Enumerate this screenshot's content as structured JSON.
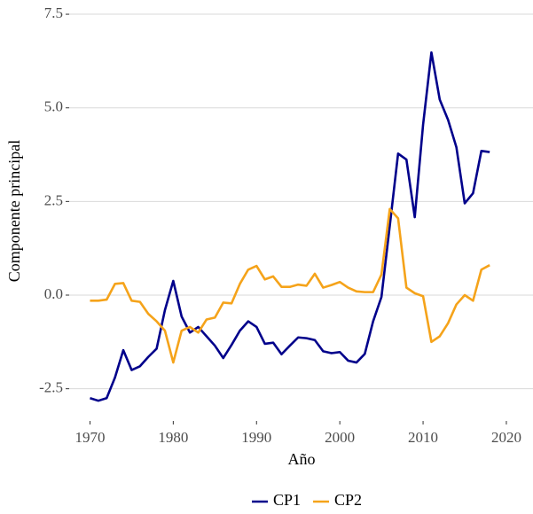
{
  "chart_data": {
    "type": "line",
    "x_label": "Año",
    "y_label": "Componente principal",
    "x": [
      1970,
      1971,
      1972,
      1973,
      1974,
      1975,
      1976,
      1977,
      1978,
      1979,
      1980,
      1981,
      1982,
      1983,
      1984,
      1985,
      1986,
      1987,
      1988,
      1989,
      1990,
      1991,
      1992,
      1993,
      1994,
      1995,
      1996,
      1997,
      1998,
      1999,
      2000,
      2001,
      2002,
      2003,
      2004,
      2005,
      2006,
      2007,
      2008,
      2009,
      2010,
      2011,
      2012,
      2013,
      2014,
      2015,
      2016,
      2017,
      2018
    ],
    "series": [
      {
        "name": "CP1",
        "color": "#00008b",
        "values": [
          -2.75,
          -2.82,
          -2.75,
          -2.2,
          -1.47,
          -2.0,
          -1.9,
          -1.65,
          -1.43,
          -0.4,
          0.38,
          -0.57,
          -1.0,
          -0.85,
          -1.1,
          -1.35,
          -1.68,
          -1.33,
          -0.95,
          -0.7,
          -0.85,
          -1.3,
          -1.27,
          -1.58,
          -1.35,
          -1.13,
          -1.15,
          -1.2,
          -1.5,
          -1.55,
          -1.52,
          -1.75,
          -1.8,
          -1.57,
          -0.7,
          -0.05,
          1.85,
          3.78,
          3.62,
          2.08,
          4.55,
          6.48,
          5.22,
          4.68,
          3.95,
          2.45,
          2.72,
          3.85,
          3.82
        ]
      },
      {
        "name": "CP2",
        "color": "#f5a31a",
        "values": [
          -0.15,
          -0.15,
          -0.12,
          0.3,
          0.32,
          -0.15,
          -0.18,
          -0.5,
          -0.7,
          -0.95,
          -1.8,
          -0.95,
          -0.85,
          -1.0,
          -0.65,
          -0.6,
          -0.2,
          -0.22,
          0.3,
          0.68,
          0.78,
          0.42,
          0.5,
          0.22,
          0.22,
          0.28,
          0.25,
          0.57,
          0.2,
          0.27,
          0.35,
          0.2,
          0.1,
          0.08,
          0.08,
          0.55,
          2.3,
          2.05,
          0.2,
          0.05,
          -0.03,
          -1.25,
          -1.1,
          -0.75,
          -0.25,
          0.0,
          -0.15,
          0.68,
          0.8
        ]
      }
    ],
    "xlim": [
      1967.5,
      2023.2
    ],
    "xticks": [
      1970,
      1980,
      1990,
      2000,
      2010,
      2020
    ],
    "ylim": [
      -3.36,
      7.88
    ],
    "yticks": [
      -2.5,
      {
        "value": 0,
        "label": "0.0"
      },
      2.5,
      {
        "value": 5,
        "label": "5.0"
      },
      7.5
    ],
    "grid": true,
    "legend": "bottom"
  }
}
